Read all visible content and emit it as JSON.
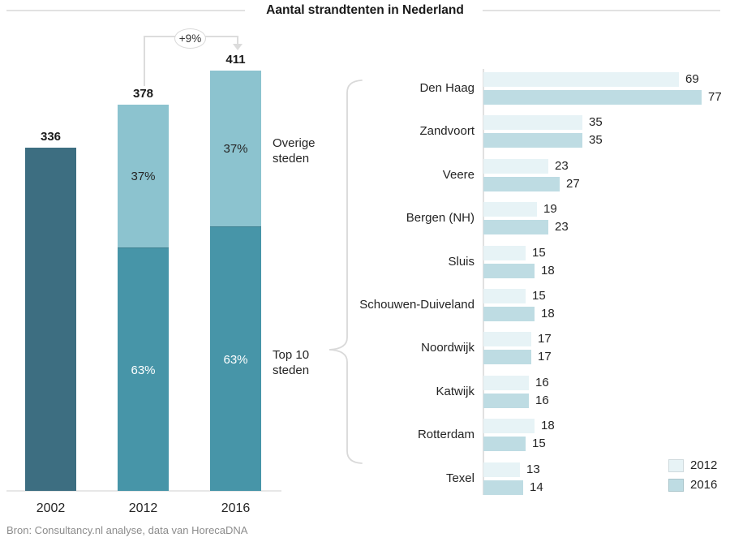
{
  "page": {
    "title": "Aantal strandtenten in Nederland",
    "source": "Bron: Consultancy.nl analyse, data van HorecaDNA"
  },
  "colors": {
    "bar_2002_dark": "#3d6e81",
    "segment_top10_mid": "#4795a8",
    "segment_overige_light": "#8cc3cf",
    "hbar_2012_light": "#e7f3f6",
    "hbar_2016_blue": "#bedce3",
    "annotation_gray": "#d9d9d9",
    "percent_text_on_dark": "#ffffff",
    "percent_text_on_light": "#262626",
    "source_gray": "#8c8c8c"
  },
  "annotations": {
    "growth_label": "+9%",
    "overige_label": "Overige steden",
    "top10_label": "Top 10 steden"
  },
  "chart_data": [
    {
      "type": "bar",
      "subtype": "stacked_vertical_columns",
      "title": "Aantal strandtenten in Nederland",
      "categories": [
        "2002",
        "2012",
        "2016"
      ],
      "totals": [
        336,
        378,
        411
      ],
      "series": [
        {
          "name": "Top 10 steden",
          "percents": [
            null,
            63,
            63
          ],
          "percent_labels": [
            "",
            "63%",
            "63%"
          ]
        },
        {
          "name": "Overige steden",
          "percents": [
            null,
            37,
            37
          ],
          "percent_labels": [
            "",
            "37%",
            "37%"
          ]
        }
      ],
      "annotation": {
        "text": "+9%",
        "from": "2012",
        "to": "2016"
      },
      "axis": {
        "baseline": true,
        "gridlines": false
      }
    },
    {
      "type": "bar",
      "subtype": "horizontal_grouped",
      "categories": [
        "Den Haag",
        "Zandvoort",
        "Veere",
        "Bergen (NH)",
        "Sluis",
        "Schouwen-Duiveland",
        "Noordwijk",
        "Katwijk",
        "Rotterdam",
        "Texel"
      ],
      "series": [
        {
          "name": "2012",
          "values": [
            69,
            35,
            23,
            19,
            15,
            15,
            17,
            16,
            18,
            13
          ]
        },
        {
          "name": "2016",
          "values": [
            77,
            35,
            27,
            23,
            18,
            18,
            17,
            16,
            15,
            14
          ]
        }
      ],
      "legend": {
        "position": "bottom-right",
        "entries": [
          "2012",
          "2016"
        ]
      },
      "value_labels": true,
      "xlim": [
        0,
        77
      ]
    }
  ]
}
